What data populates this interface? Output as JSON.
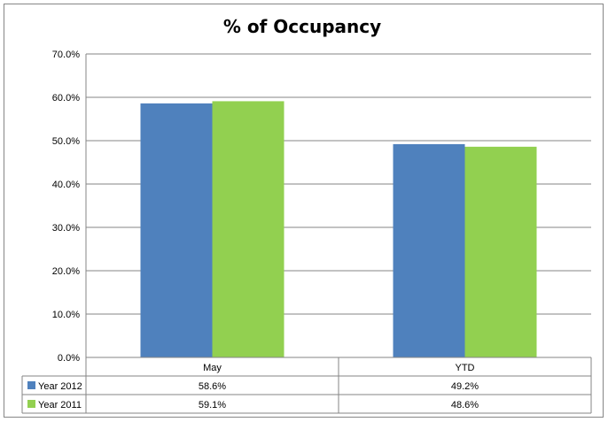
{
  "chart_data": {
    "type": "bar",
    "title": "% of Occupancy",
    "categories": [
      "May",
      "YTD"
    ],
    "series": [
      {
        "name": "Year 2012",
        "values": [
          58.6,
          49.2
        ],
        "labels": [
          "58.6%",
          "49.2%"
        ],
        "color": "#4F81BD"
      },
      {
        "name": "Year 2011",
        "values": [
          59.1,
          48.6
        ],
        "labels": [
          "59.1%",
          "48.6%"
        ],
        "color": "#92D050"
      }
    ],
    "ylim": [
      0,
      70
    ],
    "yticks": [
      "0.0%",
      "10.0%",
      "20.0%",
      "30.0%",
      "40.0%",
      "50.0%",
      "60.0%",
      "70.0%"
    ],
    "grid": true,
    "legend": "data table below the plot"
  }
}
